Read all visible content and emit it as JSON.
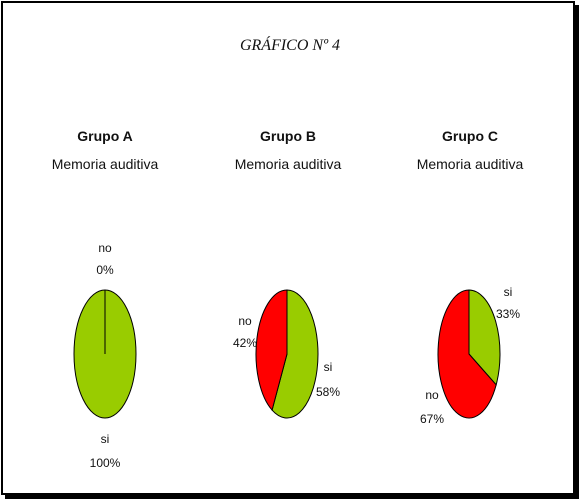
{
  "figure_title": "GRÁFICO Nº 4",
  "chart_data": [
    {
      "type": "pie",
      "title": "Grupo A",
      "subtitle": "Memoria auditiva",
      "slices": [
        {
          "label": "no",
          "value": 0,
          "pct_label": "0%",
          "color": "#ff0000"
        },
        {
          "label": "si",
          "value": 100,
          "pct_label": "100%",
          "color": "#99cc00"
        }
      ]
    },
    {
      "type": "pie",
      "title": "Grupo B",
      "subtitle": "Memoria auditiva",
      "slices": [
        {
          "label": "no",
          "value": 42,
          "pct_label": "42%",
          "color": "#ff0000"
        },
        {
          "label": "si",
          "value": 58,
          "pct_label": "58%",
          "color": "#99cc00"
        }
      ]
    },
    {
      "type": "pie",
      "title": "Grupo C",
      "subtitle": "Memoria auditiva",
      "slices": [
        {
          "label": "no",
          "value": 67,
          "pct_label": "67%",
          "color": "#ff0000"
        },
        {
          "label": "si",
          "value": 33,
          "pct_label": "33%",
          "color": "#99cc00"
        }
      ]
    }
  ]
}
